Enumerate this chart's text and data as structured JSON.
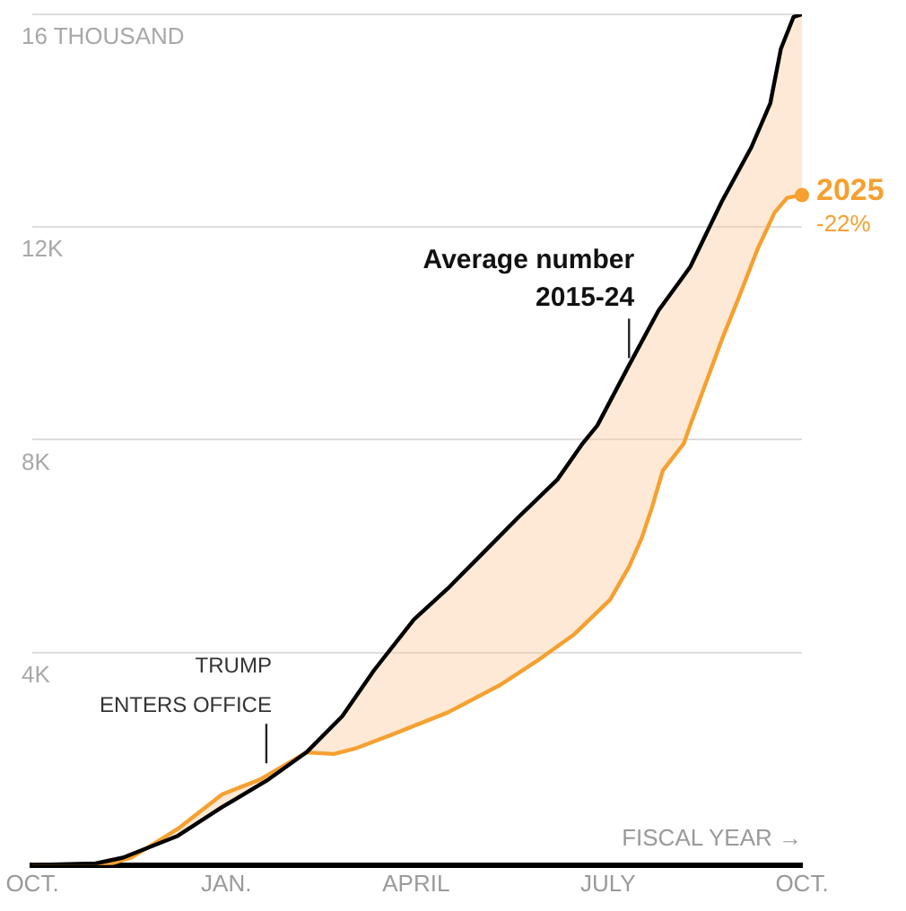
{
  "chart_data": {
    "type": "line",
    "xlim": [
      "2024-10-01",
      "2025-10-01"
    ],
    "xticks": [
      {
        "value": "2024-10-01",
        "label": "OCT."
      },
      {
        "value": "2025-01-01",
        "label": "JAN."
      },
      {
        "value": "2025-04-01",
        "label": "APRIL"
      },
      {
        "value": "2025-07-01",
        "label": "JULY"
      },
      {
        "value": "2025-10-01",
        "label": "OCT."
      }
    ],
    "ylim": [
      0,
      16
    ],
    "yticks": [
      {
        "value": 0,
        "label": null
      },
      {
        "value": 4,
        "label": "4K"
      },
      {
        "value": 8,
        "label": "8K"
      },
      {
        "value": 12,
        "label": "12K"
      },
      {
        "value": 16,
        "label": "16 THOUSAND"
      }
    ],
    "grid": "y",
    "legend": false,
    "series": [
      {
        "color": "#000000",
        "x": [
          "2024-10-01",
          "2024-10-31",
          "2024-11-13",
          "2024-12-09",
          "2024-12-30",
          "2025-01-21",
          "2025-02-08",
          "2025-02-25",
          "2025-03-12",
          "2025-03-31",
          "2025-04-16",
          "2025-05-03",
          "2025-05-20",
          "2025-06-07",
          "2025-06-19",
          "2025-06-26",
          "2025-07-11",
          "2025-07-25",
          "2025-08-09",
          "2025-08-24",
          "2025-09-07",
          "2025-09-16",
          "2025-09-21",
          "2025-09-27",
          "2025-10-01"
        ],
        "values": [
          0,
          0.03,
          0.14,
          0.55,
          1.09,
          1.61,
          2.12,
          2.8,
          3.66,
          4.62,
          5.2,
          5.88,
          6.56,
          7.25,
          7.93,
          8.27,
          9.4,
          10.43,
          11.25,
          12.48,
          13.5,
          14.33,
          15.35,
          15.95,
          16
        ]
      },
      {
        "name": "2025",
        "color": "#f5a030",
        "x": [
          "2024-10-01",
          "2024-11-05",
          "2024-11-17",
          "2024-12-09",
          "2024-12-30",
          "2025-01-17",
          "2025-02-08",
          "2025-02-21",
          "2025-03-03",
          "2025-03-21",
          "2025-04-16",
          "2025-05-11",
          "2025-05-28",
          "2025-06-15",
          "2025-07-02",
          "2025-07-11",
          "2025-07-17",
          "2025-07-22",
          "2025-07-27",
          "2025-08-06",
          "2025-08-09",
          "2025-08-24",
          "2025-09-01",
          "2025-09-10",
          "2025-09-18",
          "2025-09-24",
          "2025-10-01"
        ],
        "values": [
          0,
          0,
          0.14,
          0.68,
          1.33,
          1.61,
          2.12,
          2.09,
          2.19,
          2.46,
          2.87,
          3.39,
          3.83,
          4.34,
          4.99,
          5.61,
          6.15,
          6.74,
          7.42,
          7.93,
          8.27,
          9.88,
          10.67,
          11.59,
          12.27,
          12.55,
          12.6
        ]
      }
    ],
    "annotations": [
      {
        "text": "TRUMP ENTERS OFFICE",
        "x": "2025-01-20",
        "y": 1.78
      },
      {
        "text": "Average number 2015-24",
        "x": "2025-07-11",
        "y": 9.4
      },
      {
        "text": "-22%",
        "x": "2025-10-01",
        "y": 12.6
      },
      "FISCAL YEAR →"
    ]
  }
}
